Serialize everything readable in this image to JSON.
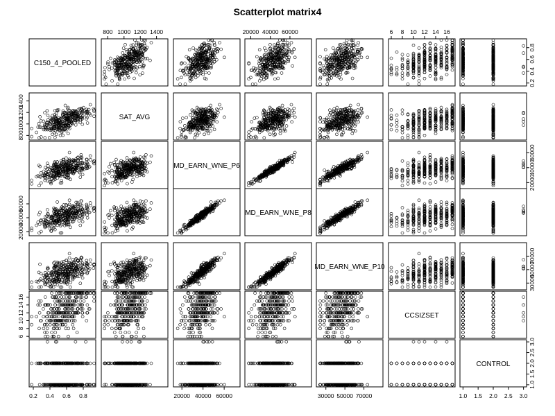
{
  "chart_data": {
    "type": "scatter",
    "subtype": "scatterplot-matrix",
    "title": "Scatterplot matrix4",
    "variables": [
      {
        "name": "C150_4_POOLED",
        "range": [
          0.15,
          0.95
        ],
        "ticks": [
          0.2,
          0.4,
          0.6,
          0.8
        ],
        "tick_labels": [
          "0.2",
          "0.4",
          "0.6",
          "0.8"
        ]
      },
      {
        "name": "SAT_AVG",
        "range": [
          720,
          1540
        ],
        "ticks": [
          800,
          1000,
          1200,
          1400
        ],
        "tick_labels": [
          "800",
          "1000",
          "1200",
          "1400"
        ]
      },
      {
        "name": "MD_EARN_WNE_P6",
        "range": [
          12000,
          75000
        ],
        "ticks": [
          20000,
          40000,
          60000
        ],
        "tick_labels": [
          "20000",
          "40000",
          "60000"
        ]
      },
      {
        "name": "MD_EARN_WNE_P8",
        "range": [
          14000,
          82000
        ],
        "ticks": [
          20000,
          40000,
          60000
        ],
        "tick_labels": [
          "20000",
          "40000",
          "60000"
        ]
      },
      {
        "name": "MD_EARN_WNE_P10",
        "range": [
          20000,
          90000
        ],
        "ticks": [
          30000,
          50000,
          70000
        ],
        "tick_labels": [
          "30000",
          "50000",
          "70000"
        ]
      },
      {
        "name": "CCSIZSET",
        "range": [
          5.5,
          17.5
        ],
        "ticks": [
          6,
          8,
          10,
          12,
          14,
          16
        ],
        "tick_labels": [
          "6",
          "8",
          "10",
          "12",
          "14",
          "16"
        ]
      },
      {
        "name": "CONTROL",
        "range": [
          0.9,
          3.1
        ],
        "ticks": [
          1.0,
          1.5,
          2.0,
          2.5,
          3.0
        ],
        "tick_labels": [
          "1.0",
          "1.5",
          "2.0",
          "2.5",
          "3.0"
        ]
      }
    ],
    "axis_layout": {
      "top": [
        1,
        3,
        5
      ],
      "bottom": [
        0,
        2,
        4,
        6
      ],
      "left": [
        1,
        3,
        5
      ],
      "right": [
        0,
        2,
        4,
        6
      ]
    },
    "marker": "open circle",
    "grid": false,
    "legend": "none"
  }
}
